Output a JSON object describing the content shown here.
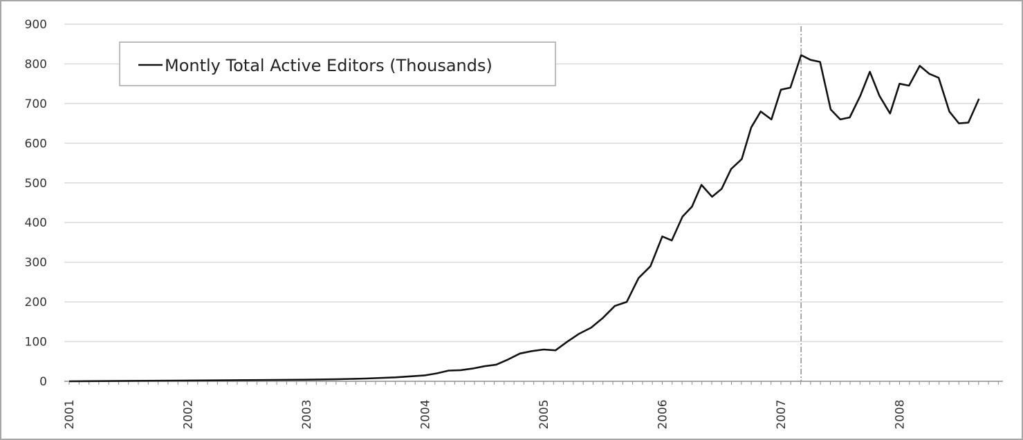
{
  "chart_data": {
    "type": "line",
    "title": "",
    "xlabel": "",
    "ylabel": "",
    "ylim": [
      0,
      900
    ],
    "yticks": [
      "0",
      "100",
      "200",
      "300",
      "400",
      "500",
      "600",
      "700",
      "800",
      "900"
    ],
    "xticks": [
      "2001",
      "2002",
      "2003",
      "2004",
      "2005",
      "2006",
      "2007",
      "2008"
    ],
    "grid": "horizontal",
    "legend_position": "top-left",
    "reference_line": {
      "x": 2007.17,
      "style": "dash-dot"
    },
    "colors": {
      "line": "#111111",
      "grid": "#d9d9d9",
      "axis": "#8c8c8c",
      "reference_line": "#8c8c8c",
      "frame": "#a6a6a6"
    },
    "series": [
      {
        "name": "Montly Total Active Editors (Thousands)",
        "x": [
          2001.0,
          2001.5,
          2002.0,
          2002.5,
          2003.0,
          2003.25,
          2003.5,
          2003.75,
          2004.0,
          2004.1,
          2004.2,
          2004.3,
          2004.4,
          2004.5,
          2004.6,
          2004.7,
          2004.8,
          2004.9,
          2005.0,
          2005.1,
          2005.2,
          2005.3,
          2005.4,
          2005.5,
          2005.6,
          2005.7,
          2005.8,
          2005.9,
          2006.0,
          2006.08,
          2006.17,
          2006.25,
          2006.33,
          2006.42,
          2006.5,
          2006.58,
          2006.67,
          2006.75,
          2006.83,
          2006.92,
          2007.0,
          2007.08,
          2007.17,
          2007.25,
          2007.33,
          2007.42,
          2007.5,
          2007.58,
          2007.67,
          2007.75,
          2007.83,
          2007.92,
          2008.0,
          2008.08,
          2008.17,
          2008.25,
          2008.33,
          2008.42,
          2008.5,
          2008.58,
          2008.67
        ],
        "values": [
          0,
          1,
          2,
          3,
          4,
          5,
          7,
          10,
          15,
          20,
          27,
          28,
          32,
          38,
          42,
          55,
          70,
          76,
          80,
          78,
          100,
          120,
          135,
          160,
          190,
          200,
          260,
          290,
          365,
          355,
          415,
          440,
          495,
          465,
          485,
          535,
          560,
          640,
          680,
          660,
          735,
          740,
          822,
          810,
          805,
          685,
          660,
          665,
          720,
          780,
          720,
          675,
          750,
          745,
          795,
          775,
          765,
          680,
          650,
          652,
          712
        ]
      }
    ]
  }
}
